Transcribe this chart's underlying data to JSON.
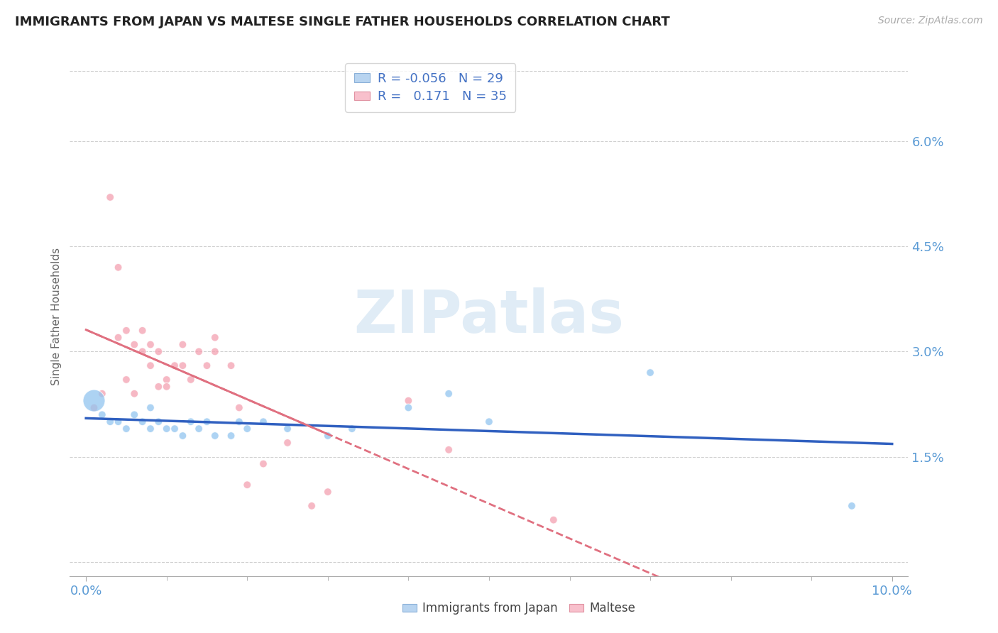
{
  "title": "IMMIGRANTS FROM JAPAN VS MALTESE SINGLE FATHER HOUSEHOLDS CORRELATION CHART",
  "source": "Source: ZipAtlas.com",
  "ylabel": "Single Father Households",
  "R_japan": -0.056,
  "N_japan": 29,
  "R_maltese": 0.171,
  "N_maltese": 35,
  "xlim": [
    -0.002,
    0.102
  ],
  "ylim": [
    -0.002,
    0.072
  ],
  "ytick_vals": [
    0.015,
    0.03,
    0.045,
    0.06
  ],
  "ytick_labels": [
    "1.5%",
    "3.0%",
    "4.5%",
    "6.0%"
  ],
  "xtick_vals": [
    0.0,
    0.1
  ],
  "xtick_labels": [
    "0.0%",
    "10.0%"
  ],
  "xtick_minor_vals": [
    0.0,
    0.01,
    0.02,
    0.03,
    0.04,
    0.05,
    0.06,
    0.07,
    0.08,
    0.09,
    0.1
  ],
  "background_color": "#ffffff",
  "grid_color": "#d0d0d0",
  "title_color": "#222222",
  "axis_color": "#5b9bd5",
  "japan_scatter_color": "#92c5f0",
  "maltese_scatter_color": "#f4a0b0",
  "japan_line_color": "#3060c0",
  "maltese_line_color": "#e07080",
  "watermark": "ZIPatlas",
  "japan_points_x": [
    0.001,
    0.002,
    0.003,
    0.004,
    0.005,
    0.006,
    0.007,
    0.008,
    0.008,
    0.009,
    0.01,
    0.011,
    0.012,
    0.013,
    0.014,
    0.015,
    0.016,
    0.018,
    0.019,
    0.02,
    0.022,
    0.025,
    0.03,
    0.033,
    0.04,
    0.045,
    0.05,
    0.07,
    0.095
  ],
  "japan_points_y": [
    0.023,
    0.021,
    0.02,
    0.02,
    0.019,
    0.021,
    0.02,
    0.019,
    0.022,
    0.02,
    0.019,
    0.019,
    0.018,
    0.02,
    0.019,
    0.02,
    0.018,
    0.018,
    0.02,
    0.019,
    0.02,
    0.019,
    0.018,
    0.019,
    0.022,
    0.024,
    0.02,
    0.027,
    0.008
  ],
  "japan_sizes": [
    500,
    60,
    60,
    60,
    60,
    60,
    60,
    60,
    60,
    60,
    60,
    60,
    60,
    60,
    60,
    60,
    60,
    60,
    60,
    60,
    60,
    60,
    60,
    60,
    60,
    60,
    60,
    60,
    60
  ],
  "maltese_points_x": [
    0.001,
    0.002,
    0.003,
    0.004,
    0.004,
    0.005,
    0.005,
    0.006,
    0.006,
    0.007,
    0.007,
    0.008,
    0.008,
    0.009,
    0.009,
    0.01,
    0.01,
    0.011,
    0.012,
    0.012,
    0.013,
    0.014,
    0.015,
    0.016,
    0.016,
    0.018,
    0.019,
    0.02,
    0.022,
    0.025,
    0.028,
    0.03,
    0.04,
    0.045,
    0.058
  ],
  "maltese_points_y": [
    0.022,
    0.024,
    0.052,
    0.032,
    0.042,
    0.033,
    0.026,
    0.031,
    0.024,
    0.03,
    0.033,
    0.028,
    0.031,
    0.025,
    0.03,
    0.026,
    0.025,
    0.028,
    0.031,
    0.028,
    0.026,
    0.03,
    0.028,
    0.032,
    0.03,
    0.028,
    0.022,
    0.011,
    0.014,
    0.017,
    0.008,
    0.01,
    0.023,
    0.016,
    0.006
  ],
  "maltese_sizes": [
    60,
    60,
    60,
    60,
    60,
    60,
    60,
    60,
    60,
    60,
    60,
    60,
    60,
    60,
    60,
    60,
    60,
    60,
    60,
    60,
    60,
    60,
    60,
    60,
    60,
    60,
    60,
    60,
    60,
    60,
    60,
    60,
    60,
    60,
    60
  ]
}
